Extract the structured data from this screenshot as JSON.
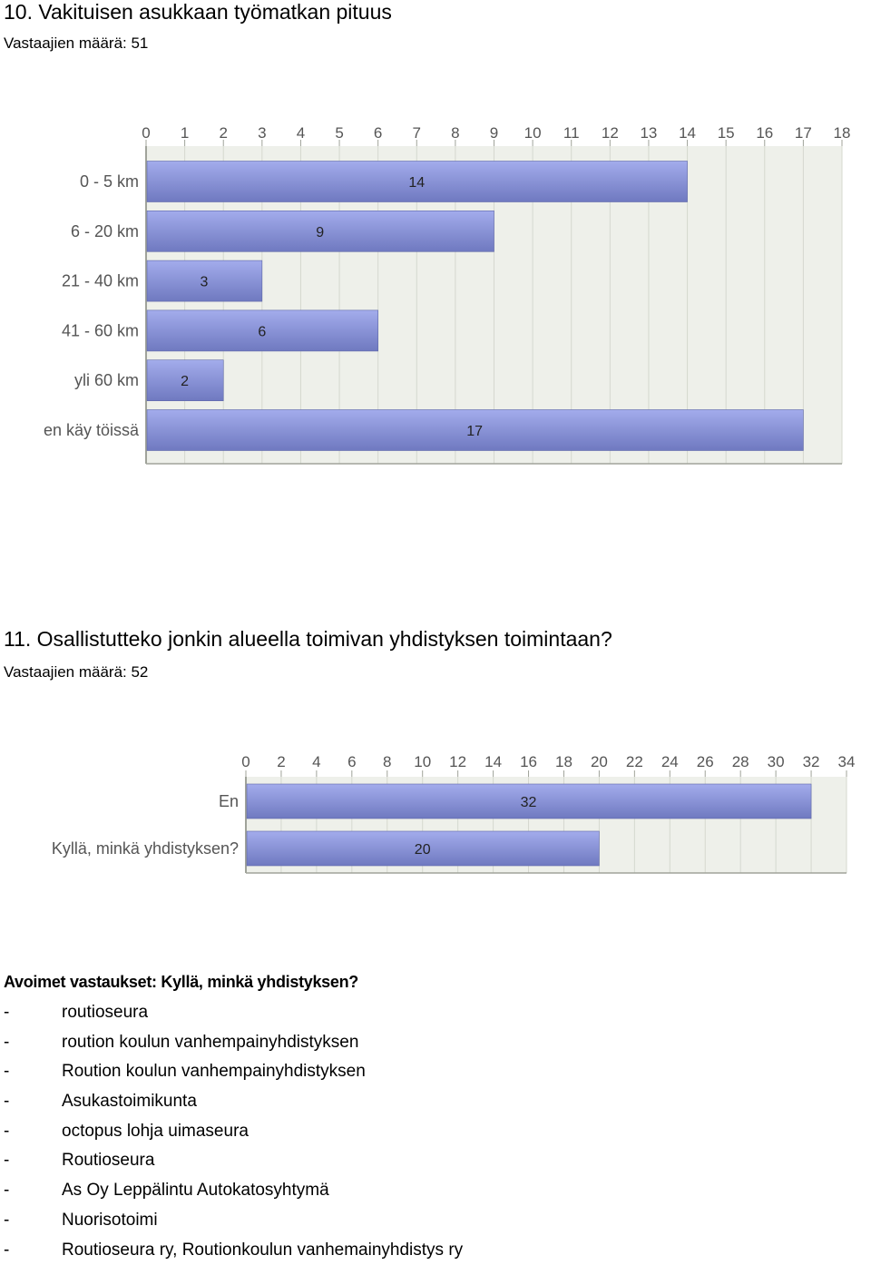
{
  "questions": [
    {
      "title": "10. Vakituisen asukkaan työmatkan pituus",
      "respondents": "Vastaajien määrä: 51"
    },
    {
      "title": "11. Osallistutteko jonkin alueella toimivan yhdistyksen toimintaan?",
      "respondents": "Vastaajien määrä: 52"
    }
  ],
  "colors": {
    "bar": "#8a94d6",
    "bar_top": "#a3acec",
    "bar_bottom": "#6f79c0",
    "plot_bg": "#eef0ea",
    "grid": "#d5d8cf",
    "axis": "#a0a39a"
  },
  "chart_data": [
    {
      "type": "bar",
      "orientation": "horizontal",
      "categories": [
        "0 - 5 km",
        "6 - 20 km",
        "21 - 40 km",
        "41 - 60 km",
        "yli 60 km",
        "en käy töissä"
      ],
      "values": [
        14,
        9,
        3,
        6,
        2,
        17
      ],
      "xlim": [
        0,
        18
      ],
      "xticks": [
        "0",
        "1",
        "2",
        "3",
        "4",
        "5",
        "6",
        "7",
        "8",
        "9",
        "10",
        "11",
        "12",
        "13",
        "14",
        "15",
        "16",
        "17",
        "18"
      ],
      "tick_position": "top",
      "grid": true,
      "data_labels": true
    },
    {
      "type": "bar",
      "orientation": "horizontal",
      "categories": [
        "En",
        "Kyllä, minkä yhdistyksen?"
      ],
      "values": [
        32,
        20
      ],
      "xlim": [
        0,
        34
      ],
      "xticks": [
        "0",
        "2",
        "4",
        "6",
        "8",
        "10",
        "12",
        "14",
        "16",
        "18",
        "20",
        "22",
        "24",
        "26",
        "28",
        "30",
        "32",
        "34"
      ],
      "tick_position": "top",
      "grid": true,
      "data_labels": true
    }
  ],
  "open_answers": {
    "title": "Avoimet vastaukset: Kyllä, minkä yhdistyksen?",
    "items": [
      "routioseura",
      "roution koulun vanhempainyhdistyksen",
      "Roution koulun vanhempainyhdistyksen",
      "Asukastoimikunta",
      "octopus lohja uimaseura",
      "Routioseura",
      "As Oy Leppälintu Autokatosyhtymä",
      "Nuorisotoimi",
      "Routioseura ry, Routionkoulun vanhemainyhdistys ry"
    ]
  }
}
